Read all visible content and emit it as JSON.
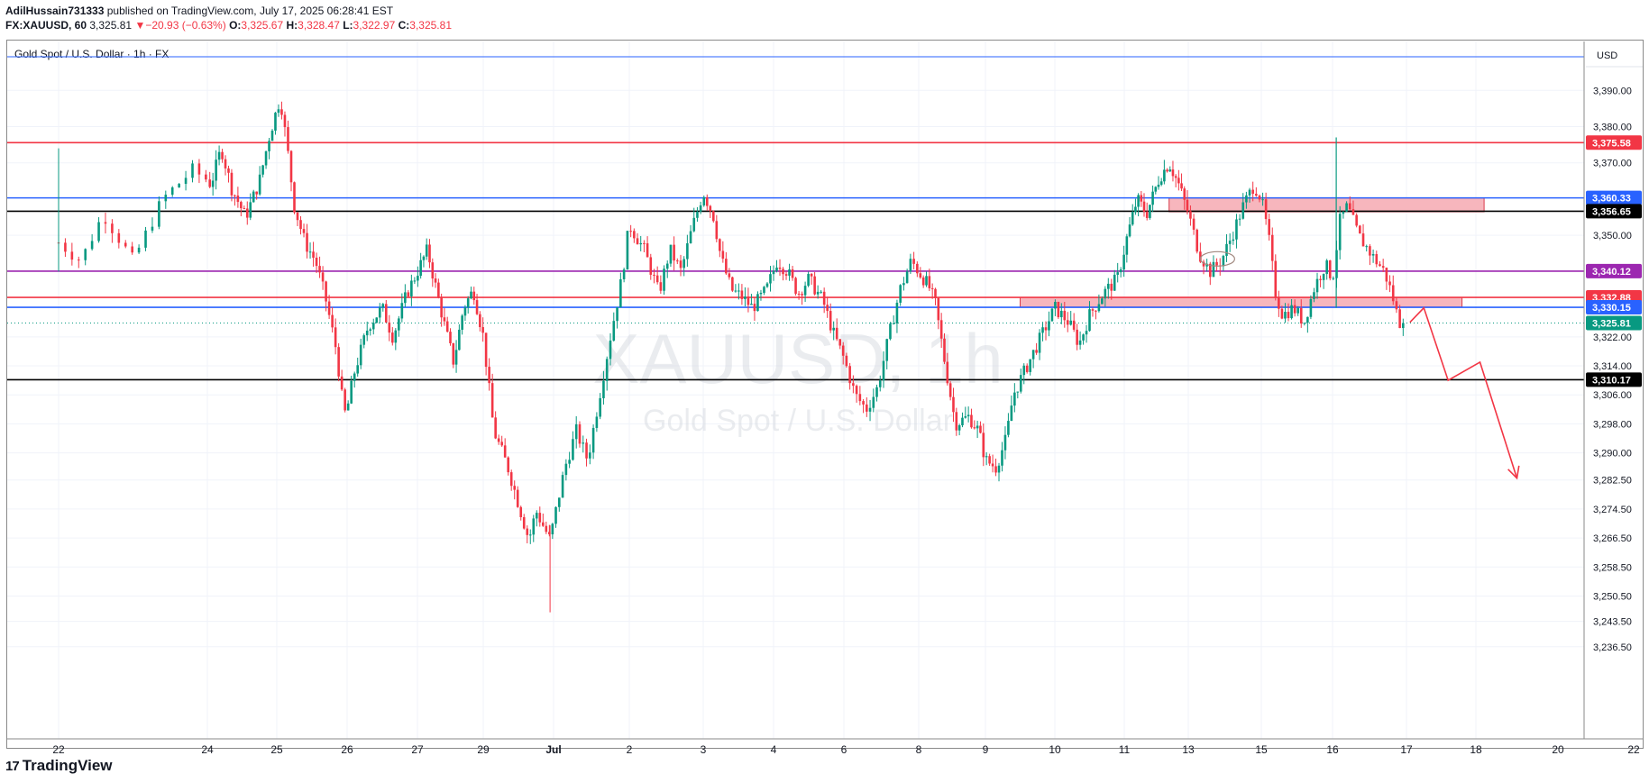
{
  "header": {
    "author": "AdilHussain731333",
    "published_text": "published on TradingView.com, July 17, 2025 06:28:41 EST",
    "symbol_interval": "FX:XAUUSD, 60",
    "last_price": "3,325.81",
    "change_arrow": "▼",
    "change": "−20.93 (−0.63%)",
    "o_label": "O:",
    "o_value": "3,325.67",
    "h_label": "H:",
    "h_value": "3,328.47",
    "l_label": "L:",
    "l_value": "3,322.97",
    "c_label": "C:",
    "c_value": "3,325.81"
  },
  "footer": {
    "logo_mark": "17",
    "brand": "TradingView"
  },
  "chart_data": {
    "type": "candlestick",
    "title": "Gold Spot / U.S. Dollar · 1h · FX",
    "watermark_symbol": "XAUUSD, 1h",
    "watermark_name": "Gold Spot / U.S. Dollar",
    "currency": "USD",
    "ylim": [
      3228.0,
      3401.0
    ],
    "y_ticks": [
      "3,390.00",
      "3,380.00",
      "3,370.00",
      "3,350.00",
      "3,322.00",
      "3,314.00",
      "3,306.00",
      "3,298.00",
      "3,290.00",
      "3,282.50",
      "3,274.50",
      "3,266.50",
      "3,258.50",
      "3,250.50",
      "3,243.50",
      "3,236.50"
    ],
    "x_ticks": [
      "22",
      "24",
      "25",
      "26",
      "27",
      "29",
      "Jul",
      "2",
      "3",
      "4",
      "6",
      "8",
      "9",
      "10",
      "11",
      "13",
      "15",
      "16",
      "17",
      "18",
      "20",
      "22"
    ],
    "x_tick_bold": "Jul",
    "time_index_range": [
      0,
      21
    ],
    "price_path": [
      [
        0.0,
        3348
      ],
      [
        0.15,
        3343
      ],
      [
        0.3,
        3356
      ],
      [
        0.5,
        3343
      ],
      [
        0.7,
        3360
      ],
      [
        0.9,
        3368
      ],
      [
        1.05,
        3364
      ],
      [
        1.2,
        3374
      ],
      [
        1.35,
        3363
      ],
      [
        1.55,
        3355
      ],
      [
        1.75,
        3365
      ],
      [
        1.9,
        3378
      ],
      [
        2.05,
        3388
      ],
      [
        2.15,
        3374
      ],
      [
        2.25,
        3358
      ],
      [
        2.4,
        3348
      ],
      [
        2.55,
        3343
      ],
      [
        2.7,
        3332
      ],
      [
        2.85,
        3318
      ],
      [
        2.92,
        3306
      ],
      [
        2.98,
        3300
      ],
      [
        3.1,
        3312
      ],
      [
        3.3,
        3325
      ],
      [
        3.5,
        3330
      ],
      [
        3.65,
        3322
      ],
      [
        3.85,
        3334
      ],
      [
        4.0,
        3340
      ],
      [
        4.15,
        3346
      ],
      [
        4.25,
        3338
      ],
      [
        4.4,
        3326
      ],
      [
        4.55,
        3315
      ],
      [
        4.7,
        3330
      ],
      [
        4.85,
        3335
      ],
      [
        5.0,
        3322
      ],
      [
        5.15,
        3296
      ],
      [
        5.35,
        3286
      ],
      [
        5.5,
        3276
      ],
      [
        5.65,
        3266
      ],
      [
        5.75,
        3274
      ],
      [
        5.95,
        3266
      ],
      [
        6.15,
        3286
      ],
      [
        6.3,
        3296
      ],
      [
        6.45,
        3288
      ],
      [
        6.6,
        3305
      ],
      [
        6.75,
        3322
      ],
      [
        6.9,
        3338
      ],
      [
        7.0,
        3353
      ],
      [
        7.2,
        3346
      ],
      [
        7.4,
        3334
      ],
      [
        7.55,
        3346
      ],
      [
        7.7,
        3340
      ],
      [
        7.85,
        3352
      ],
      [
        8.0,
        3362
      ],
      [
        8.15,
        3355
      ],
      [
        8.25,
        3344
      ],
      [
        8.4,
        3335
      ],
      [
        8.55,
        3333
      ],
      [
        8.7,
        3330
      ],
      [
        8.9,
        3335
      ],
      [
        9.05,
        3343
      ],
      [
        9.2,
        3340
      ],
      [
        9.35,
        3334
      ],
      [
        9.5,
        3338
      ],
      [
        9.7,
        3332
      ],
      [
        9.85,
        3323
      ],
      [
        10.0,
        3316
      ],
      [
        10.15,
        3306
      ],
      [
        10.3,
        3302
      ],
      [
        10.45,
        3308
      ],
      [
        10.6,
        3322
      ],
      [
        10.75,
        3335
      ],
      [
        10.9,
        3343
      ],
      [
        11.0,
        3340
      ],
      [
        11.15,
        3336
      ],
      [
        11.25,
        3331
      ],
      [
        11.4,
        3314
      ],
      [
        11.55,
        3298
      ],
      [
        11.75,
        3300
      ],
      [
        11.9,
        3296
      ],
      [
        12.0,
        3288
      ],
      [
        12.15,
        3286
      ],
      [
        12.3,
        3294
      ],
      [
        12.4,
        3306
      ],
      [
        12.55,
        3312
      ],
      [
        12.7,
        3318
      ],
      [
        12.85,
        3324
      ],
      [
        13.0,
        3330
      ],
      [
        13.2,
        3326
      ],
      [
        13.35,
        3320
      ],
      [
        13.5,
        3328
      ],
      [
        13.7,
        3334
      ],
      [
        13.9,
        3338
      ],
      [
        14.05,
        3350
      ],
      [
        14.2,
        3360
      ],
      [
        14.35,
        3356
      ],
      [
        14.55,
        3366
      ],
      [
        14.7,
        3370
      ],
      [
        14.85,
        3364
      ],
      [
        15.0,
        3356
      ],
      [
        15.15,
        3345
      ],
      [
        15.3,
        3340
      ],
      [
        15.45,
        3343
      ],
      [
        15.6,
        3350
      ],
      [
        15.75,
        3358
      ],
      [
        15.9,
        3364
      ],
      [
        16.0,
        3360
      ],
      [
        16.1,
        3350
      ],
      [
        16.2,
        3334
      ],
      [
        16.3,
        3328
      ],
      [
        16.45,
        3330
      ],
      [
        16.6,
        3326
      ],
      [
        16.75,
        3336
      ],
      [
        16.9,
        3342
      ],
      [
        17.0,
        3338
      ],
      [
        17.1,
        3354
      ],
      [
        17.2,
        3358
      ],
      [
        17.35,
        3350
      ],
      [
        17.55,
        3344
      ],
      [
        17.7,
        3340
      ],
      [
        17.8,
        3334
      ],
      [
        17.9,
        3326
      ],
      [
        17.98,
        3325.81
      ]
    ],
    "levels": [
      {
        "value": 3375.58,
        "label": "3,375.58",
        "color": "#f23645"
      },
      {
        "value": 3360.33,
        "label": "3,360.33",
        "color": "#2962ff"
      },
      {
        "value": 3356.65,
        "label": "3,356.65",
        "color": "#000000"
      },
      {
        "value": 3340.12,
        "label": "3,340.12",
        "color": "#9c27b0"
      },
      {
        "value": 3332.88,
        "label": "3,332.88",
        "color": "#f23645"
      },
      {
        "value": 3330.15,
        "label": "3,330.15",
        "color": "#2962ff"
      },
      {
        "value": 3325.81,
        "label": "3,325.81",
        "color": "#089981"
      },
      {
        "value": 3310.17,
        "label": "3,310.17",
        "color": "#000000"
      }
    ],
    "zones": [
      {
        "t0": 14.7,
        "t1": 19.1,
        "y0": 3356.5,
        "y1": 3360.3,
        "color": "#f7b6bd"
      },
      {
        "t0": 12.5,
        "t1": 18.8,
        "y0": 3330.2,
        "y1": 3332.9,
        "color": "#f7b6bd"
      }
    ],
    "projection": [
      [
        18.05,
        3326
      ],
      [
        18.25,
        3330
      ],
      [
        18.6,
        3310
      ],
      [
        19.05,
        3315
      ],
      [
        19.5,
        3283
      ]
    ],
    "colors": {
      "up": "#089981",
      "down": "#f23645",
      "grid": "#f0f3fa",
      "axis": "#8a8a8a",
      "text": "#131722"
    }
  }
}
